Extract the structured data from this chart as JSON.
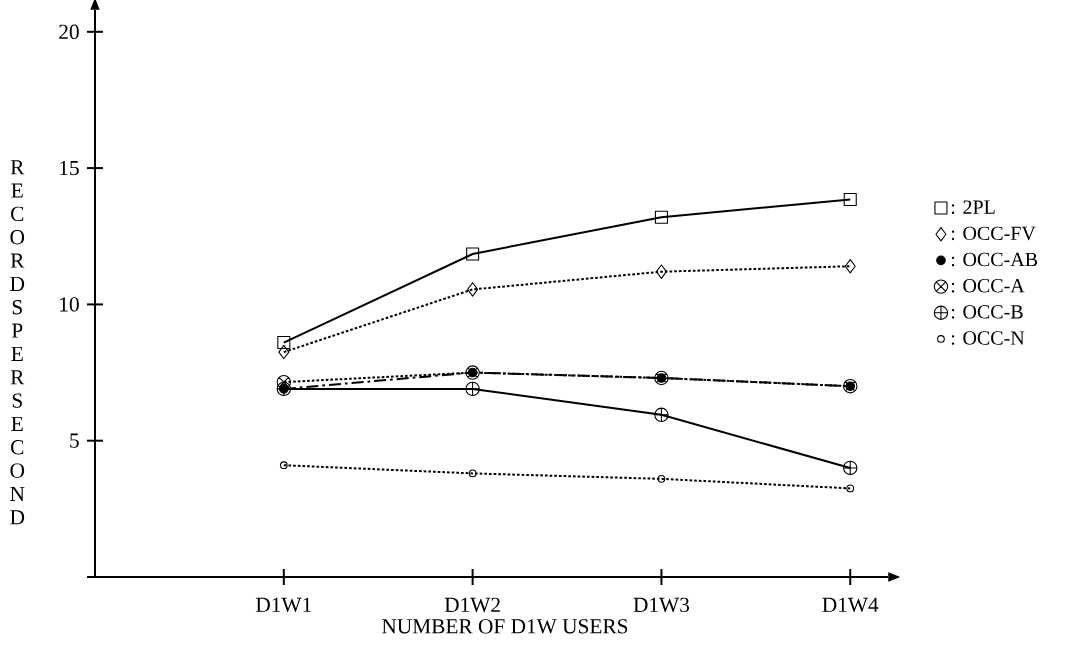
{
  "chart_data": {
    "type": "line",
    "xlabel": "NUMBER OF D1W USERS",
    "ylabel": "RECORDS PER SECOND",
    "categories": [
      "D1W1",
      "D1W2",
      "D1W3",
      "D1W4"
    ],
    "ylim": [
      0,
      20.8
    ],
    "yticks": [
      {
        "value": 0,
        "label": null
      },
      5,
      10,
      15,
      20
    ],
    "grid": false,
    "legend": "right",
    "series": [
      {
        "name": ": 2PL",
        "color": "#000000",
        "marker": "square",
        "line_style": "solid",
        "values": [
          8.6,
          11.85,
          13.2,
          13.85
        ]
      },
      {
        "name": ": OCC-FV",
        "color": "#000000",
        "marker": "diamond",
        "line_style": "dotted",
        "values": [
          8.25,
          10.55,
          11.2,
          11.4
        ]
      },
      {
        "name": ": OCC-AB",
        "color": "#000000",
        "marker": "circle",
        "line_style": "dashed",
        "values": [
          6.9,
          7.5,
          7.3,
          7.0
        ]
      },
      {
        "name": ": OCC-A",
        "color": "#000000",
        "marker": "cross",
        "line_style": "dotted",
        "values": [
          7.15,
          7.5,
          7.3,
          7.0
        ]
      },
      {
        "name": ": OCC-B",
        "color": "#000000",
        "marker": "cross",
        "line_style": "solid",
        "values": [
          6.9,
          6.9,
          5.95,
          4.0
        ]
      },
      {
        "name": ": OCC-N",
        "color": "#000000",
        "marker": "circle",
        "line_style": "dotted",
        "values": [
          4.1,
          3.8,
          3.6,
          3.25
        ]
      }
    ]
  }
}
